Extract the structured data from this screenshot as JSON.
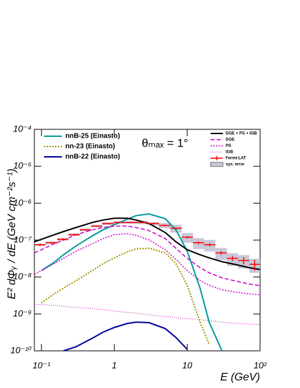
{
  "chart_data": {
    "type": "line",
    "xscale": "log",
    "yscale": "log",
    "xlabel": "E (GeV)",
    "ylabel": "E² dΦᵧ / dE (GeV cm⁻²s⁻¹)",
    "annotation": "θₘₐₓ = 1°",
    "xlim": [
      0.08,
      100
    ],
    "ylim": [
      1e-10,
      0.0001
    ],
    "xticks": [
      {
        "value": 0.1,
        "label": "10⁻¹"
      },
      1,
      10,
      {
        "value": 100,
        "label": "10²"
      }
    ],
    "yticks": [
      {
        "value": 1e-10,
        "label": "10⁻¹⁰"
      },
      {
        "value": 1e-09,
        "label": "10⁻⁹"
      },
      {
        "value": 1e-08,
        "label": "10⁻⁸"
      },
      {
        "value": 1e-07,
        "label": "10⁻⁷"
      },
      {
        "value": 1e-06,
        "label": "10⁻⁶"
      },
      {
        "value": 1e-05,
        "label": "10⁻⁵"
      },
      {
        "value": 0.0001,
        "label": "10⁻⁴"
      }
    ],
    "grid": false,
    "x": [
      0.08,
      0.1,
      0.15,
      0.2,
      0.3,
      0.5,
      0.7,
      1,
      1.5,
      2,
      3,
      5,
      7,
      10,
      15,
      20,
      30,
      50,
      70,
      100
    ],
    "series": [
      {
        "name": "nnB-25 (Einasto)",
        "color": "#009999",
        "style": "solid",
        "width": 2,
        "legend": "upper left",
        "values": [
          null,
          1.5e-08,
          2.5e-08,
          4e-08,
          7e-08,
          1.3e-07,
          1.9e-07,
          2.6e-07,
          3.7e-07,
          4.6e-07,
          5.1e-07,
          3.8e-07,
          1.9e-07,
          5e-08,
          5e-09,
          6e-10,
          1e-10,
          null,
          null,
          null
        ]
      },
      {
        "name": "nn-23 (Einasto)",
        "color": "#a09000",
        "style": "dotted",
        "width": 2,
        "legend": "upper left",
        "values": [
          null,
          2e-09,
          3.5e-09,
          5e-09,
          8e-09,
          1.5e-08,
          2.3e-08,
          3.3e-08,
          4.8e-08,
          5.8e-08,
          6e-08,
          4.5e-08,
          2.3e-08,
          6e-09,
          6e-10,
          1.5e-10,
          null,
          null,
          null,
          null
        ]
      },
      {
        "name": "nnB-22 (Einasto)",
        "color": "#000099",
        "style": "solid",
        "width": 2,
        "legend": "upper left",
        "values": [
          null,
          null,
          null,
          1e-10,
          1.3e-10,
          2.2e-10,
          3.2e-10,
          4.3e-10,
          5.5e-10,
          6e-10,
          5.8e-10,
          4e-10,
          2.3e-10,
          1.1e-10,
          null,
          null,
          null,
          null,
          null,
          null
        ]
      },
      {
        "name": "DGE + PS + IGB",
        "color": "#000000",
        "style": "solid",
        "width": 2,
        "legend": "upper right",
        "values": [
          9e-08,
          1.05e-07,
          1.4e-07,
          1.7e-07,
          2.2e-07,
          3e-07,
          3.5e-07,
          3.9e-07,
          3.9e-07,
          3.5e-07,
          2.8e-07,
          1.6e-07,
          9e-08,
          5.5e-08,
          4e-08,
          3.3e-08,
          2.6e-08,
          2.1e-08,
          1.8e-08,
          1.6e-08
        ]
      },
      {
        "name": "DGE",
        "color": "#cc00cc",
        "style": "dashed",
        "width": 1.5,
        "legend": "upper right",
        "values": [
          4.5e-08,
          5.5e-08,
          8e-08,
          1e-07,
          1.4e-07,
          1.9e-07,
          2.2e-07,
          2.4e-07,
          2.4e-07,
          2.2e-07,
          1.8e-07,
          1.1e-07,
          6e-08,
          3.2e-08,
          1.8e-08,
          1.3e-08,
          9.5e-09,
          7.5e-09,
          6.5e-09,
          5.8e-09
        ]
      },
      {
        "name": "PS",
        "color": "#cc00cc",
        "style": "dotted",
        "width": 1.5,
        "legend": "upper right",
        "values": [
          1.2e-08,
          1.5e-08,
          2.3e-08,
          3.2e-08,
          5e-08,
          8e-08,
          1.1e-07,
          1.4e-07,
          1.5e-07,
          1.35e-07,
          1e-07,
          5.5e-08,
          3e-08,
          1.5e-08,
          8e-09,
          6e-09,
          4.5e-09,
          3.8e-09,
          3.5e-09,
          3.3e-09
        ]
      },
      {
        "name": "IGB",
        "color": "#cc00cc",
        "style": "finedotted",
        "width": 1,
        "legend": "upper right",
        "values": [
          1.8e-09,
          1.8e-09,
          1.7e-09,
          1.6e-09,
          1.5e-09,
          1.4e-09,
          1.3e-09,
          1.2e-09,
          1.1e-09,
          1.05e-09,
          9.5e-10,
          8.5e-10,
          8e-10,
          7.5e-10,
          7e-10,
          6.5e-10,
          6e-10,
          5.5e-10,
          5.3e-10,
          5.2e-10
        ]
      }
    ],
    "measurement": {
      "name": "Fermi-LAT",
      "color": "#ff0000",
      "legend": "upper right",
      "bins": [
        0.08,
        0.114,
        0.164,
        0.234,
        0.335,
        0.48,
        0.68,
        0.98,
        1.4,
        2.0,
        2.86,
        4.1,
        5.85,
        8.4,
        12,
        17,
        24.4,
        35,
        50,
        71,
        100
      ],
      "values": [
        7.5e-08,
        8.5e-08,
        1.05e-07,
        1.4e-07,
        1.9e-07,
        2.4e-07,
        2.8e-07,
        3e-07,
        3e-07,
        3e-07,
        2.8e-07,
        2.5e-07,
        2.1e-07,
        1.2e-07,
        8.5e-08,
        7.5e-08,
        4.5e-08,
        3.2e-08,
        2.8e-08,
        2.2e-08
      ],
      "errors": [
        6e-09,
        6e-09,
        7e-09,
        8e-09,
        9e-09,
        1e-08,
        1.2e-08,
        1.2e-08,
        1.2e-08,
        1.2e-08,
        1.2e-08,
        1.2e-08,
        1.1e-08,
        8e-09,
        7e-09,
        7e-09,
        5e-09,
        5e-09,
        6e-09,
        7e-09
      ]
    },
    "band": {
      "name": "sys. error",
      "color": "#c8c8d8",
      "legend": "upper right",
      "values": [
        5e-09,
        6e-09,
        8e-09,
        1.1e-08,
        1.5e-08,
        2e-08,
        2.4e-08,
        2.6e-08,
        2.8e-08,
        3e-08,
        3e-08,
        4e-08,
        5e-08,
        3.5e-08,
        2.8e-08,
        2.6e-08,
        1.6e-08,
        1.2e-08,
        1.1e-08,
        9e-09
      ]
    }
  }
}
